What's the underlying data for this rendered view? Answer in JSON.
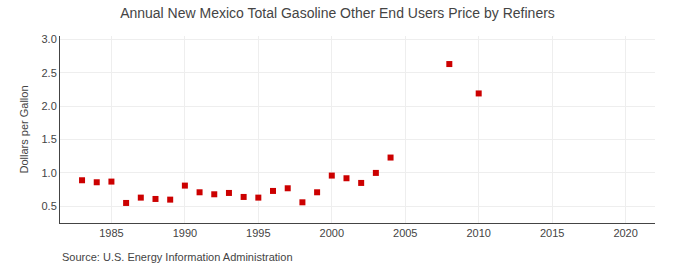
{
  "chart_data": {
    "type": "scatter",
    "title": "Annual New Mexico Total Gasoline Other End Users Price by Refiners",
    "ylabel": "Dollars per Gallon",
    "annotations": [
      "Source: U.S. Energy Information Administration"
    ],
    "x": [
      1983,
      1984,
      1985,
      1986,
      1987,
      1988,
      1989,
      1990,
      1991,
      1992,
      1993,
      1994,
      1995,
      1996,
      1997,
      1998,
      1999,
      2000,
      2001,
      2002,
      2003,
      2004,
      2008,
      2010
    ],
    "values": [
      0.89,
      0.86,
      0.87,
      0.55,
      0.63,
      0.61,
      0.6,
      0.81,
      0.71,
      0.68,
      0.7,
      0.64,
      0.63,
      0.73,
      0.77,
      0.56,
      0.71,
      0.96,
      0.92,
      0.85,
      1.0,
      1.23,
      2.63,
      2.19
    ],
    "color": "#cc0000",
    "marker": "square",
    "xlim": [
      1981.5,
      2022
    ],
    "ylim": [
      0.25,
      3.05
    ],
    "xticks": [
      1985,
      1990,
      1995,
      2000,
      2005,
      2010,
      2015,
      2020
    ],
    "yticks": [
      0.5,
      {
        "value": 1,
        "label": "1.0"
      },
      1.5,
      {
        "value": 2,
        "label": "2.0"
      },
      2.5,
      {
        "value": 3,
        "label": "3.0"
      }
    ],
    "grid": true
  }
}
